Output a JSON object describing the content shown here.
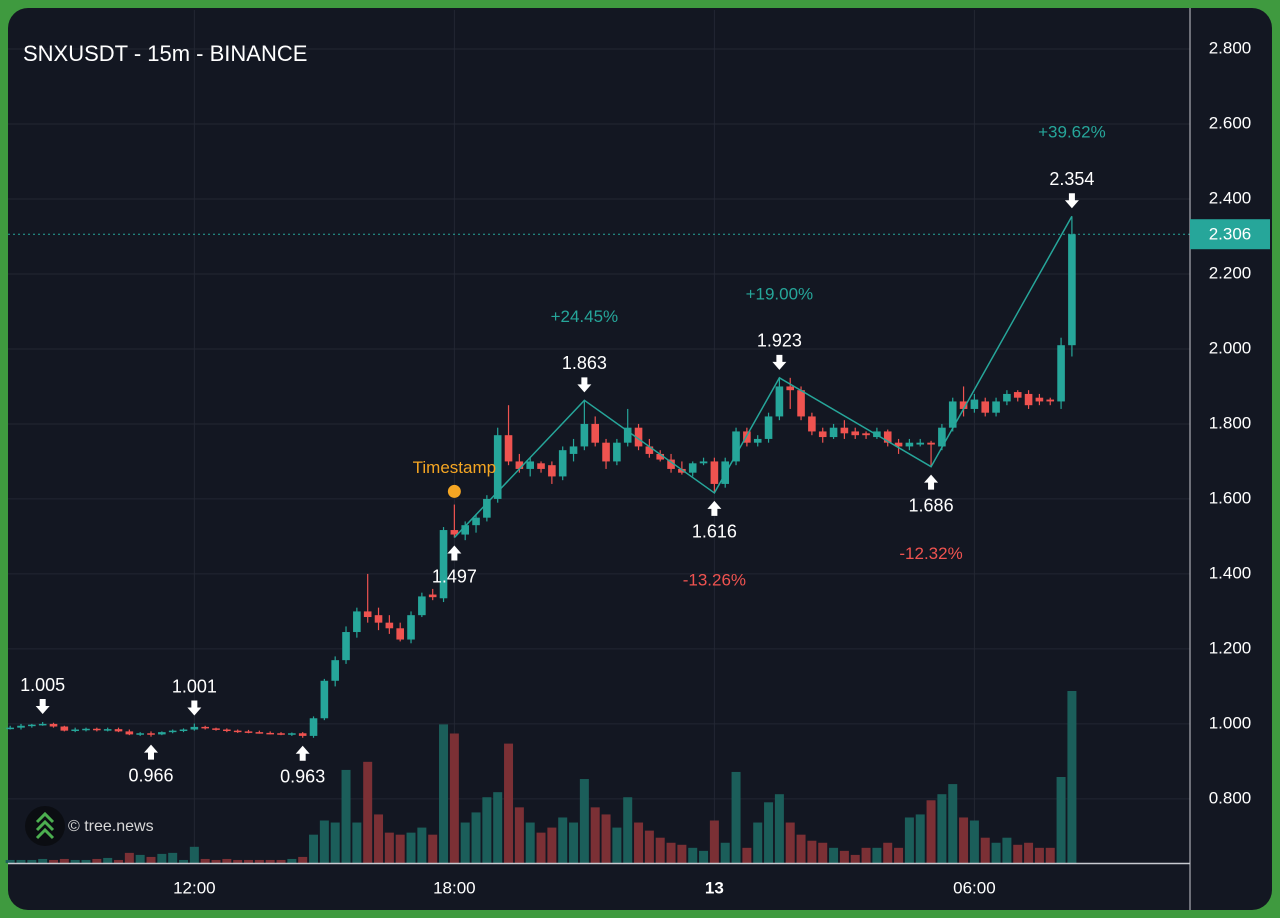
{
  "chart_data": {
    "type": "candlestick",
    "title": "SNXUSDT - 15m - BINANCE",
    "watermark": "© tree.news",
    "up_color": "#26a69a",
    "down_color": "#ef5350",
    "volume_up_color": "#1b5e5a",
    "volume_down_color": "#7b3035",
    "xlim": [
      -0.2,
      108.9
    ],
    "ylim": [
      0.629,
      2.904
    ],
    "xticks": [
      {
        "value": 17,
        "label": "12:00"
      },
      {
        "value": 41,
        "label": "18:00"
      },
      {
        "value": 65,
        "label": "13",
        "bold": true
      },
      {
        "value": 89,
        "label": "06:00"
      }
    ],
    "yticks": [
      {
        "value": 0.8,
        "label": "0.800"
      },
      {
        "value": 1.0,
        "label": "1.000"
      },
      {
        "value": 1.2,
        "label": "1.200"
      },
      {
        "value": 1.4,
        "label": "1.400"
      },
      {
        "value": 1.6,
        "label": "1.600"
      },
      {
        "value": 1.8,
        "label": "1.800"
      },
      {
        "value": 2.0,
        "label": "2.000"
      },
      {
        "value": 2.2,
        "label": "2.200"
      },
      {
        "value": 2.4,
        "label": "2.400"
      },
      {
        "value": 2.6,
        "label": "2.600"
      },
      {
        "value": 2.8,
        "label": "2.800"
      }
    ],
    "grid": true,
    "last_price": {
      "value": 2.306,
      "label": "2.306",
      "color": "#26a69a"
    },
    "candles": [
      [
        0.99,
        0.995,
        0.985,
        0.99
      ],
      [
        0.99,
        1.0,
        0.985,
        0.995
      ],
      [
        0.995,
        1.0,
        0.99,
        0.998
      ],
      [
        0.998,
        1.005,
        0.995,
        1.0
      ],
      [
        1.0,
        1.003,
        0.99,
        0.993
      ],
      [
        0.993,
        0.995,
        0.98,
        0.982
      ],
      [
        0.982,
        0.99,
        0.978,
        0.985
      ],
      [
        0.985,
        0.99,
        0.98,
        0.987
      ],
      [
        0.987,
        0.99,
        0.98,
        0.983
      ],
      [
        0.983,
        0.99,
        0.98,
        0.986
      ],
      [
        0.986,
        0.99,
        0.978,
        0.98
      ],
      [
        0.98,
        0.985,
        0.97,
        0.972
      ],
      [
        0.972,
        0.978,
        0.968,
        0.975
      ],
      [
        0.975,
        0.98,
        0.966,
        0.972
      ],
      [
        0.972,
        0.98,
        0.97,
        0.978
      ],
      [
        0.978,
        0.985,
        0.975,
        0.982
      ],
      [
        0.982,
        0.988,
        0.978,
        0.985
      ],
      [
        0.985,
        1.001,
        0.982,
        0.992
      ],
      [
        0.992,
        0.995,
        0.985,
        0.988
      ],
      [
        0.988,
        0.99,
        0.982,
        0.985
      ],
      [
        0.985,
        0.988,
        0.978,
        0.982
      ],
      [
        0.982,
        0.985,
        0.976,
        0.98
      ],
      [
        0.98,
        0.984,
        0.975,
        0.978
      ],
      [
        0.978,
        0.982,
        0.974,
        0.976
      ],
      [
        0.976,
        0.98,
        0.972,
        0.975
      ],
      [
        0.975,
        0.978,
        0.97,
        0.973
      ],
      [
        0.973,
        0.977,
        0.968,
        0.975
      ],
      [
        0.975,
        0.978,
        0.963,
        0.968
      ],
      [
        0.968,
        1.02,
        0.963,
        1.015
      ],
      [
        1.015,
        1.12,
        1.01,
        1.115
      ],
      [
        1.115,
        1.18,
        1.1,
        1.17
      ],
      [
        1.17,
        1.26,
        1.16,
        1.245
      ],
      [
        1.245,
        1.31,
        1.23,
        1.3
      ],
      [
        1.3,
        1.4,
        1.27,
        1.285
      ],
      [
        1.29,
        1.31,
        1.25,
        1.27
      ],
      [
        1.27,
        1.29,
        1.24,
        1.255
      ],
      [
        1.255,
        1.27,
        1.22,
        1.225
      ],
      [
        1.225,
        1.3,
        1.215,
        1.29
      ],
      [
        1.29,
        1.35,
        1.285,
        1.34
      ],
      [
        1.345,
        1.36,
        1.33,
        1.338
      ],
      [
        1.335,
        1.525,
        1.325,
        1.517
      ],
      [
        1.517,
        1.585,
        1.497,
        1.505
      ],
      [
        1.505,
        1.54,
        1.49,
        1.53
      ],
      [
        1.53,
        1.56,
        1.51,
        1.55
      ],
      [
        1.55,
        1.61,
        1.54,
        1.6
      ],
      [
        1.6,
        1.79,
        1.59,
        1.77
      ],
      [
        1.77,
        1.85,
        1.69,
        1.7
      ],
      [
        1.7,
        1.72,
        1.67,
        1.68
      ],
      [
        1.68,
        1.71,
        1.66,
        1.7
      ],
      [
        1.695,
        1.7,
        1.67,
        1.68
      ],
      [
        1.69,
        1.7,
        1.64,
        1.66
      ],
      [
        1.66,
        1.74,
        1.65,
        1.73
      ],
      [
        1.72,
        1.76,
        1.7,
        1.74
      ],
      [
        1.74,
        1.863,
        1.73,
        1.8
      ],
      [
        1.8,
        1.82,
        1.74,
        1.75
      ],
      [
        1.75,
        1.76,
        1.68,
        1.7
      ],
      [
        1.7,
        1.76,
        1.69,
        1.75
      ],
      [
        1.75,
        1.84,
        1.74,
        1.79
      ],
      [
        1.79,
        1.8,
        1.73,
        1.74
      ],
      [
        1.74,
        1.76,
        1.71,
        1.72
      ],
      [
        1.72,
        1.73,
        1.7,
        1.705
      ],
      [
        1.705,
        1.72,
        1.67,
        1.68
      ],
      [
        1.68,
        1.7,
        1.665,
        1.67
      ],
      [
        1.67,
        1.7,
        1.66,
        1.695
      ],
      [
        1.695,
        1.71,
        1.69,
        1.7
      ],
      [
        1.7,
        1.71,
        1.616,
        1.64
      ],
      [
        1.64,
        1.71,
        1.63,
        1.7
      ],
      [
        1.7,
        1.79,
        1.69,
        1.78
      ],
      [
        1.78,
        1.79,
        1.74,
        1.75
      ],
      [
        1.75,
        1.77,
        1.74,
        1.76
      ],
      [
        1.76,
        1.83,
        1.75,
        1.82
      ],
      [
        1.82,
        1.92,
        1.81,
        1.9
      ],
      [
        1.9,
        1.923,
        1.84,
        1.89
      ],
      [
        1.89,
        1.9,
        1.81,
        1.82
      ],
      [
        1.82,
        1.83,
        1.77,
        1.78
      ],
      [
        1.78,
        1.79,
        1.75,
        1.765
      ],
      [
        1.765,
        1.8,
        1.76,
        1.79
      ],
      [
        1.79,
        1.81,
        1.76,
        1.775
      ],
      [
        1.78,
        1.79,
        1.76,
        1.77
      ],
      [
        1.775,
        1.78,
        1.76,
        1.77
      ],
      [
        1.765,
        1.79,
        1.76,
        1.78
      ],
      [
        1.78,
        1.785,
        1.74,
        1.75
      ],
      [
        1.75,
        1.76,
        1.72,
        1.74
      ],
      [
        1.74,
        1.76,
        1.73,
        1.75
      ],
      [
        1.745,
        1.76,
        1.74,
        1.75
      ],
      [
        1.75,
        1.755,
        1.686,
        1.745
      ],
      [
        1.74,
        1.8,
        1.73,
        1.79
      ],
      [
        1.79,
        1.87,
        1.78,
        1.86
      ],
      [
        1.86,
        1.9,
        1.82,
        1.84
      ],
      [
        1.84,
        1.88,
        1.83,
        1.865
      ],
      [
        1.86,
        1.87,
        1.82,
        1.83
      ],
      [
        1.83,
        1.87,
        1.82,
        1.86
      ],
      [
        1.86,
        1.89,
        1.85,
        1.88
      ],
      [
        1.885,
        1.89,
        1.86,
        1.87
      ],
      [
        1.88,
        1.89,
        1.84,
        1.85
      ],
      [
        1.87,
        1.88,
        1.85,
        1.86
      ],
      [
        1.865,
        1.87,
        1.85,
        1.86
      ],
      [
        1.86,
        2.03,
        1.84,
        2.01
      ],
      [
        2.01,
        2.354,
        1.98,
        2.306
      ]
    ],
    "volumes": [
      3,
      3,
      3,
      4,
      3,
      4,
      3,
      3,
      4,
      5,
      3,
      10,
      8,
      6,
      9,
      10,
      3,
      16,
      4,
      3,
      4,
      3,
      3,
      3,
      3,
      3,
      4,
      6,
      28,
      42,
      40,
      92,
      40,
      100,
      48,
      30,
      28,
      30,
      35,
      28,
      137,
      128,
      40,
      50,
      65,
      70,
      118,
      55,
      40,
      30,
      35,
      45,
      40,
      83,
      55,
      48,
      35,
      65,
      40,
      32,
      25,
      20,
      18,
      15,
      12,
      42,
      20,
      90,
      15,
      40,
      60,
      68,
      40,
      28,
      22,
      20,
      15,
      12,
      8,
      15,
      15,
      20,
      15,
      45,
      48,
      62,
      68,
      78,
      45,
      42,
      25,
      20,
      25,
      18,
      20,
      15,
      15,
      85,
      170
    ],
    "pivots": [
      {
        "x": 3,
        "value": 1.005,
        "kind": "high"
      },
      {
        "x": 13,
        "value": 0.966,
        "kind": "low"
      },
      {
        "x": 17,
        "value": 1.001,
        "kind": "high"
      },
      {
        "x": 27,
        "value": 0.963,
        "kind": "low"
      }
    ],
    "swings": [
      {
        "x": 41,
        "value": 1.497,
        "kind": "low"
      },
      {
        "x": 53,
        "value": 1.863,
        "kind": "high",
        "change": 24.45,
        "change_label": "+24.45%"
      },
      {
        "x": 65,
        "value": 1.616,
        "kind": "low",
        "change": -13.26,
        "change_label": "-13.26%"
      },
      {
        "x": 71,
        "value": 1.923,
        "kind": "high",
        "change": 19.0,
        "change_label": "+19.00%"
      },
      {
        "x": 85,
        "value": 1.686,
        "kind": "low",
        "change": -12.32,
        "change_label": "-12.32%"
      },
      {
        "x": 98,
        "value": 2.354,
        "kind": "high",
        "change": 39.62,
        "change_label": "+39.62%"
      }
    ],
    "marker": {
      "label": "Timestamp",
      "x": 41,
      "value": 1.62,
      "color": "#f5a623"
    }
  }
}
